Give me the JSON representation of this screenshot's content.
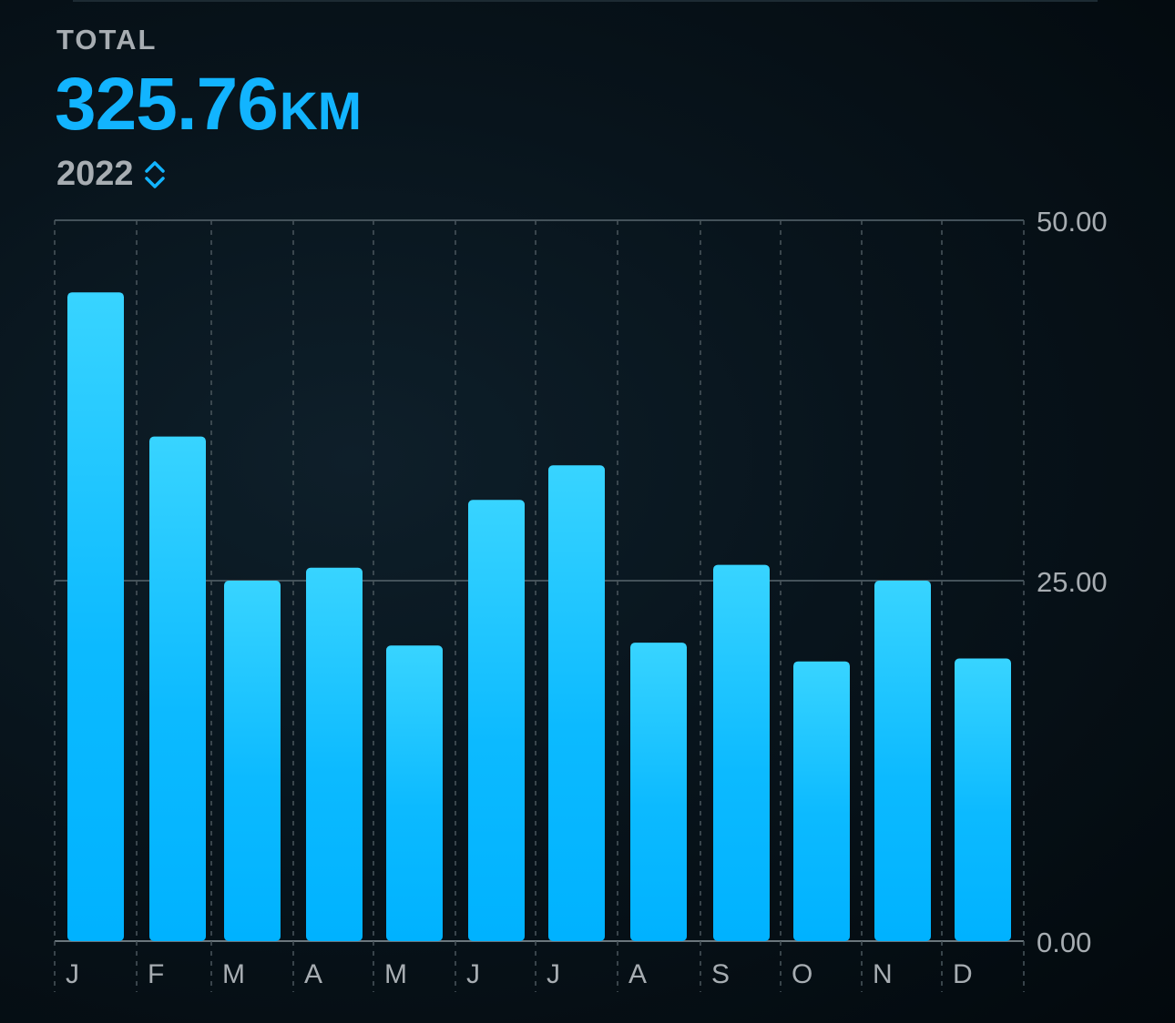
{
  "header": {
    "total_label": "TOTAL",
    "total_value": "325.76",
    "total_unit": "KM",
    "year": "2022"
  },
  "colors": {
    "accent": "#12b4ff",
    "bar_top": "#38d4ff",
    "bar_bottom": "#00b2ff",
    "grid": "#44525a",
    "text_muted": "#a7adb2"
  },
  "chart_data": {
    "type": "bar",
    "categories": [
      "J",
      "F",
      "M",
      "A",
      "M",
      "J",
      "J",
      "A",
      "S",
      "O",
      "N",
      "D"
    ],
    "values": [
      45.0,
      35.0,
      25.0,
      25.9,
      20.5,
      30.6,
      33.0,
      20.7,
      26.1,
      19.4,
      25.0,
      19.6
    ],
    "ylim": [
      0,
      50
    ],
    "yticks": [
      "0.00",
      "25.00",
      "50.00"
    ],
    "ytick_values": [
      0,
      25,
      50
    ],
    "grid": true
  }
}
